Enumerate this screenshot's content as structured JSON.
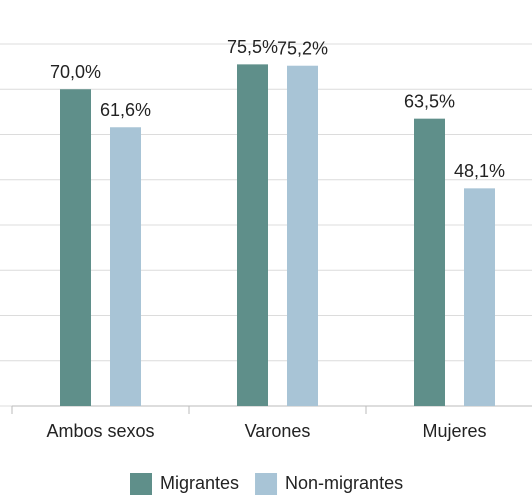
{
  "chart_data": {
    "type": "bar",
    "categories": [
      "Ambos sexos",
      "Varones",
      "Mujeres"
    ],
    "series": [
      {
        "name": "Migrantes",
        "color": "#5f8f8a",
        "values": [
          70.0,
          75.5,
          63.5
        ],
        "value_labels": [
          "70,0%",
          "75,5%",
          "63,5%"
        ]
      },
      {
        "name": "Non-migrantes",
        "color": "#a8c4d6",
        "values": [
          61.6,
          75.2,
          48.1
        ],
        "value_labels": [
          "61,6%",
          "75,2%",
          "48,1%"
        ]
      }
    ],
    "ylim": [
      0,
      80
    ],
    "yticks": [
      0,
      10,
      20,
      30,
      40,
      50,
      60,
      70,
      80
    ],
    "grid": true,
    "legend": "bottom"
  }
}
